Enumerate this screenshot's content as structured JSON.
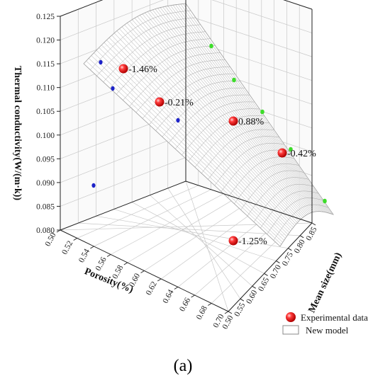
{
  "chart_data": {
    "type": "scatter",
    "axes": {
      "z_label": "Thermal conductivity(W/(m·k))",
      "x_label": "Porosity(%)",
      "y_label": "Mean size(mm)",
      "z_ticks": [
        "0.080",
        "0.085",
        "0.090",
        "0.095",
        "0.100",
        "0.105",
        "0.110",
        "0.115",
        "0.120",
        "0.125"
      ],
      "x_ticks": [
        "0.50",
        "0.52",
        "0.54",
        "0.56",
        "0.58",
        "0.60",
        "0.62",
        "0.64",
        "0.66",
        "0.68",
        "0.70"
      ],
      "y_ticks": [
        "0.50",
        "0.55",
        "0.60",
        "0.65",
        "0.70",
        "0.75",
        "0.80",
        "0.85"
      ],
      "z_range": [
        0.08,
        0.125
      ],
      "x_range": [
        0.5,
        0.7
      ],
      "y_range": [
        0.5,
        0.85
      ]
    },
    "series": [
      {
        "name": "Experimental data",
        "color": "#e8141c",
        "points": [
          {
            "label": "-1.46%",
            "value": 0.117
          },
          {
            "label": "-0.21%",
            "value": 0.109
          },
          {
            "label": "0.88%",
            "value": 0.105
          },
          {
            "label": "-0.42%",
            "value": 0.098
          },
          {
            "label": "-1.25%",
            "value": 0.082
          }
        ]
      },
      {
        "name": "New model",
        "color": "#bdbdbd"
      }
    ],
    "projections": {
      "left_wall_color": "#1d23c8",
      "right_wall_color": "#3ddc2a",
      "left_wall_count": 5,
      "right_wall_count": 5
    },
    "grid": true,
    "legend_position": "bottom-right"
  },
  "caption": "(a)"
}
